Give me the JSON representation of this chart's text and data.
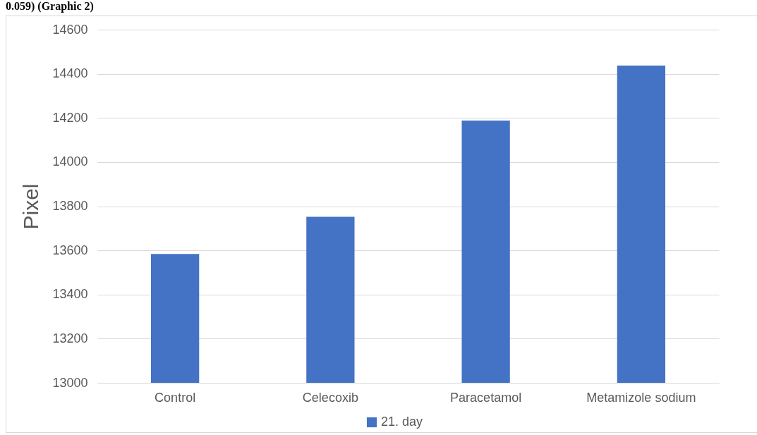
{
  "chart_data": {
    "type": "bar",
    "ylabel": "Pixel",
    "annotations": [
      "0.059) (Graphic 2)"
    ],
    "categories": [
      "Control",
      "Celecoxib",
      "Paracetamol",
      "Metamizole sodium"
    ],
    "series": [
      {
        "name": "21. day",
        "color": "#4472c4",
        "values": [
          13584,
          13752,
          14188,
          14437
        ]
      }
    ],
    "ylim": [
      13000,
      14600
    ],
    "yticks": [
      13000,
      13200,
      13400,
      13600,
      13800,
      14000,
      14200,
      14400,
      14600
    ],
    "grid": "y",
    "legend": "bottom"
  }
}
